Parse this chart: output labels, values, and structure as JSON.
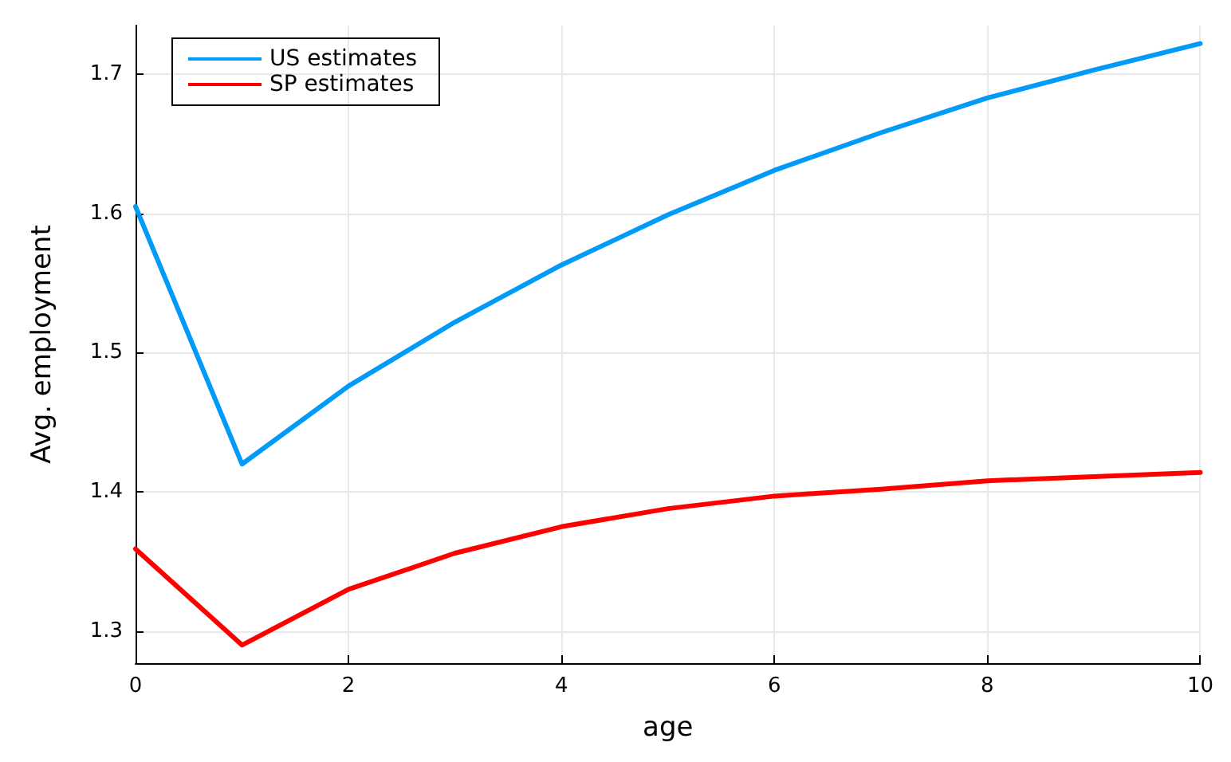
{
  "chart_data": {
    "type": "line",
    "xlabel": "age",
    "ylabel": "Avg. employment",
    "x": [
      0,
      1,
      2,
      3,
      4,
      5,
      6,
      7,
      8,
      9,
      10
    ],
    "series": [
      {
        "name": "US estimates",
        "color": "#009af9",
        "values": [
          1.605,
          1.42,
          1.476,
          1.522,
          1.563,
          1.599,
          1.631,
          1.658,
          1.683,
          1.703,
          1.722
        ]
      },
      {
        "name": "SP estimates",
        "color": "#ff0000",
        "values": [
          1.359,
          1.29,
          1.33,
          1.356,
          1.375,
          1.388,
          1.397,
          1.402,
          1.408,
          1.411,
          1.414
        ]
      }
    ],
    "xlim": [
      0,
      10
    ],
    "xticks": [
      0,
      2,
      4,
      6,
      8,
      10
    ],
    "ylim": [
      1.277,
      1.735
    ],
    "yticks": [
      1.3,
      1.4,
      1.5,
      1.6,
      1.7
    ],
    "grid": true,
    "legend": "top left",
    "marker": "none",
    "line_style": "solid"
  }
}
